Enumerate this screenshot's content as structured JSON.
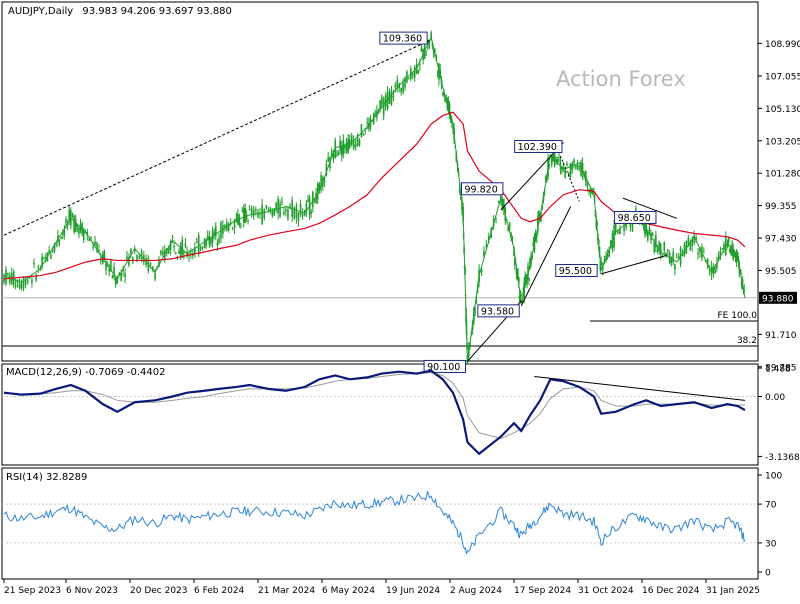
{
  "header": {
    "symbol": "AUDJPY,Daily",
    "ohlc": "93.983 94.206 93.697 93.880",
    "watermark": "Action Forex"
  },
  "colors": {
    "candle": "#1f9e2b",
    "ma": "#e0001b",
    "macd": "#0b1a7a",
    "signal": "#9a9a9a",
    "rsi": "#2f86d6",
    "grid": "#c9c9c9",
    "text": "#000000"
  },
  "price_axis": {
    "ticks": [
      "108.990",
      "107.055",
      "105.130",
      "103.205",
      "101.280",
      "99.355",
      "97.430",
      "95.505",
      "91.710",
      "89.785"
    ],
    "last_price": "93.880",
    "annotations": [
      {
        "text": "FE 100.0",
        "price": 92.2
      },
      {
        "text": "38.2",
        "price": 90.6
      }
    ]
  },
  "macd_panel": {
    "label": "MACD(12,26,9) -0.7069 -0.4402",
    "ticks": [
      "1.488",
      "0.00",
      "-3.1368"
    ]
  },
  "rsi_panel": {
    "label": "RSI(14) 32.8289",
    "ticks": [
      "100",
      "70",
      "30",
      "0"
    ]
  },
  "x_labels": [
    "21 Sep 2023",
    "6 Nov 2023",
    "20 Dec 2023",
    "6 Feb 2024",
    "21 Mar 2024",
    "6 May 2024",
    "19 Jun 2024",
    "2 Aug 2024",
    "17 Sep 2024",
    "31 Oct 2024",
    "16 Dec 2024",
    "31 Jan 2025"
  ],
  "chart_data": {
    "type": "line",
    "price_labels": [
      {
        "text": "109.360",
        "date": "2024-07-11",
        "price": 109.36
      },
      {
        "text": "102.390",
        "date": "2024-10-01",
        "price": 102.39
      },
      {
        "text": "99.820",
        "date": "2024-08-28",
        "price": 99.82
      },
      {
        "text": "98.650",
        "date": "2024-11-28",
        "price": 98.65
      },
      {
        "text": "95.500",
        "date": "2024-11-05",
        "price": 95.5
      },
      {
        "text": "93.580",
        "date": "2024-09-11",
        "price": 93.58
      },
      {
        "text": "90.100",
        "date": "2024-08-05",
        "price": 90.1
      }
    ],
    "series": [
      {
        "name": "AUDJPY",
        "x": [
          "2023-09-21",
          "2023-10-03",
          "2023-10-16",
          "2023-10-27",
          "2023-11-06",
          "2023-11-16",
          "2023-11-28",
          "2023-12-08",
          "2023-12-20",
          "2024-01-03",
          "2024-01-15",
          "2024-01-25",
          "2024-02-06",
          "2024-02-16",
          "2024-02-28",
          "2024-03-08",
          "2024-03-21",
          "2024-04-02",
          "2024-04-15",
          "2024-04-25",
          "2024-05-06",
          "2024-05-16",
          "2024-05-28",
          "2024-06-07",
          "2024-06-19",
          "2024-07-01",
          "2024-07-11",
          "2024-07-19",
          "2024-07-26",
          "2024-08-02",
          "2024-08-05",
          "2024-08-13",
          "2024-08-28",
          "2024-09-06",
          "2024-09-11",
          "2024-09-17",
          "2024-09-24",
          "2024-10-01",
          "2024-10-10",
          "2024-10-21",
          "2024-10-31",
          "2024-11-05",
          "2024-11-15",
          "2024-11-28",
          "2024-12-06",
          "2024-12-16",
          "2024-12-27",
          "2025-01-08",
          "2025-01-20",
          "2025-01-31",
          "2025-02-07",
          "2025-02-12"
        ],
        "values": [
          95.2,
          94.8,
          95.6,
          97.2,
          98.6,
          97.8,
          96.2,
          95.0,
          96.8,
          95.4,
          97.3,
          96.5,
          97.2,
          97.8,
          98.5,
          98.8,
          99.0,
          99.3,
          98.9,
          100.2,
          102.8,
          103.0,
          104.0,
          105.2,
          106.5,
          107.5,
          109.36,
          106.4,
          104.2,
          98.8,
          90.1,
          95.2,
          99.82,
          96.8,
          93.58,
          95.8,
          98.7,
          102.39,
          101.5,
          101.9,
          100.0,
          95.5,
          97.8,
          98.65,
          98.0,
          96.6,
          96.0,
          97.5,
          95.4,
          97.1,
          96.2,
          93.88
        ],
        "ma": [
          95.0,
          95.1,
          95.2,
          95.4,
          95.7,
          96.0,
          96.2,
          96.1,
          96.1,
          96.1,
          96.2,
          96.4,
          96.6,
          96.8,
          97.0,
          97.3,
          97.6,
          97.8,
          98.0,
          98.3,
          98.8,
          99.3,
          100.0,
          101.0,
          102.0,
          103.0,
          104.2,
          104.7,
          104.9,
          104.2,
          102.6,
          101.4,
          100.3,
          99.2,
          98.6,
          98.4,
          98.6,
          99.3,
          100.0,
          100.3,
          100.2,
          99.6,
          98.9,
          98.4,
          98.3,
          98.1,
          97.9,
          97.7,
          97.6,
          97.5,
          97.3,
          96.9
        ]
      },
      {
        "name": "MACD",
        "values": [
          0.2,
          0.1,
          0.15,
          0.4,
          0.6,
          0.3,
          -0.4,
          -0.8,
          -0.3,
          -0.2,
          0.0,
          0.2,
          0.3,
          0.4,
          0.5,
          0.6,
          0.4,
          0.3,
          0.5,
          0.9,
          1.1,
          0.9,
          1.0,
          1.2,
          1.3,
          1.2,
          1.35,
          0.9,
          0.2,
          -1.2,
          -2.4,
          -3.0,
          -2.1,
          -1.4,
          -1.8,
          -1.0,
          -0.2,
          0.9,
          0.8,
          0.5,
          0.0,
          -0.9,
          -0.8,
          -0.4,
          -0.2,
          -0.5,
          -0.4,
          -0.3,
          -0.6,
          -0.4,
          -0.5,
          -0.71
        ],
        "signal": [
          0.15,
          0.12,
          0.13,
          0.2,
          0.3,
          0.3,
          0.1,
          -0.2,
          -0.3,
          -0.3,
          -0.2,
          -0.1,
          0.0,
          0.15,
          0.3,
          0.4,
          0.4,
          0.4,
          0.45,
          0.6,
          0.8,
          0.9,
          0.95,
          1.05,
          1.15,
          1.2,
          1.25,
          1.1,
          0.7,
          -0.1,
          -1.0,
          -1.9,
          -2.2,
          -1.9,
          -1.7,
          -1.4,
          -0.9,
          -0.1,
          0.4,
          0.5,
          0.3,
          -0.2,
          -0.5,
          -0.5,
          -0.4,
          -0.4,
          -0.4,
          -0.35,
          -0.45,
          -0.45,
          -0.45,
          -0.44
        ]
      },
      {
        "name": "RSI",
        "values": [
          58,
          55,
          57,
          63,
          66,
          56,
          46,
          44,
          55,
          50,
          58,
          54,
          57,
          60,
          62,
          63,
          62,
          61,
          58,
          64,
          72,
          68,
          70,
          72,
          74,
          76,
          80,
          62,
          50,
          32,
          18,
          38,
          62,
          48,
          38,
          48,
          58,
          70,
          60,
          58,
          52,
          32,
          46,
          58,
          55,
          46,
          44,
          54,
          42,
          52,
          48,
          32.8
        ]
      }
    ],
    "ylim": [
      89.785,
      110.0
    ],
    "macd_ylim": [
      -3.1368,
      1.488
    ],
    "rsi_ylim": [
      0,
      100
    ],
    "grid": true
  }
}
